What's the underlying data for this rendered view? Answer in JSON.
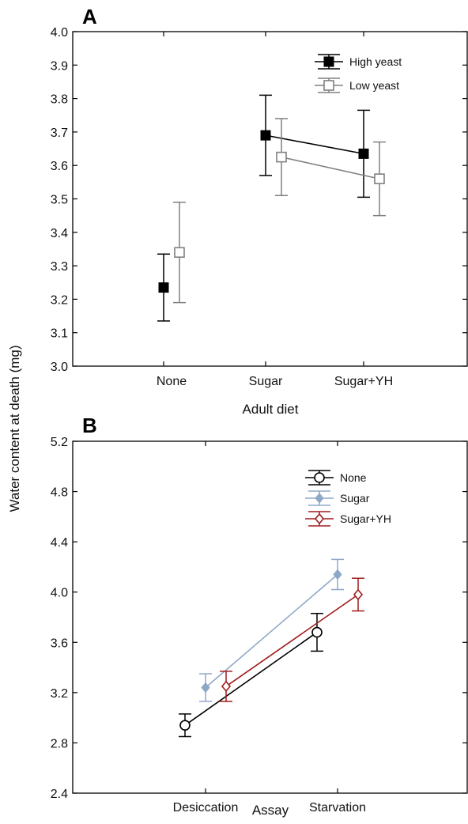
{
  "shared_ylabel": "Water content at death (mg)",
  "chart_data": [
    {
      "type": "line",
      "panel": "A",
      "xlabel": "Adult diet",
      "categories": [
        "None",
        "Sugar",
        "Sugar+YH"
      ],
      "ylim": [
        3.0,
        4.0
      ],
      "yticks": [
        "3.0",
        "3.1",
        "3.2",
        "3.3",
        "3.4",
        "3.5",
        "3.6",
        "3.7",
        "3.8",
        "3.9",
        "4.0"
      ],
      "legend_position": "top-right",
      "series": [
        {
          "name": "High yeast",
          "color": "#000000",
          "marker": "filled-square",
          "values": [
            3.235,
            3.69,
            3.635
          ],
          "err": [
            0.1,
            0.12,
            0.13
          ],
          "connect": [
            1,
            2
          ]
        },
        {
          "name": "Low yeast",
          "color": "#808080",
          "marker": "open-square",
          "values": [
            3.34,
            3.625,
            3.56
          ],
          "err": [
            0.15,
            0.115,
            0.11
          ],
          "connect": [
            1,
            2
          ]
        }
      ]
    },
    {
      "type": "line",
      "panel": "B",
      "xlabel": "Assay",
      "categories": [
        "Desiccation",
        "Starvation"
      ],
      "ylim": [
        2.4,
        5.2
      ],
      "yticks": [
        "2.4",
        "2.8",
        "3.2",
        "3.6",
        "4.0",
        "4.4",
        "4.8",
        "5.2"
      ],
      "legend_position": "top-right",
      "series": [
        {
          "name": "None",
          "color": "#000000",
          "marker": "open-circle",
          "values": [
            2.94,
            3.68
          ],
          "err": [
            0.09,
            0.15
          ],
          "connect": [
            0,
            1
          ]
        },
        {
          "name": "Sugar",
          "color": "#8fa8c8",
          "marker": "filled-diamond",
          "values": [
            3.24,
            4.14
          ],
          "err": [
            0.11,
            0.12
          ],
          "connect": [
            0,
            1
          ]
        },
        {
          "name": "Sugar+YH",
          "color": "#a01c1c",
          "marker": "open-diamond",
          "values": [
            3.25,
            3.98
          ],
          "err": [
            0.12,
            0.13
          ],
          "connect": [
            0,
            1
          ]
        }
      ]
    }
  ]
}
